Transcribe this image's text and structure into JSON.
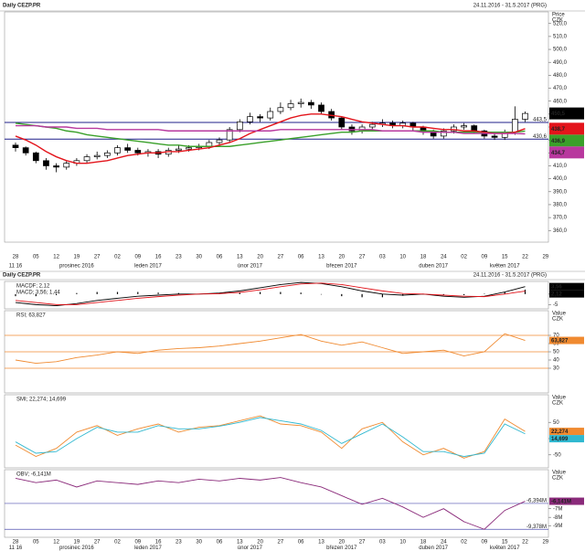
{
  "chart_data": [
    {
      "type": "candlestick",
      "title": "Daily CEZP.PR",
      "subtitle": "24.11.2016 - 31.5.2017 (PRG)",
      "ylabel": [
        "Price",
        "CZK"
      ],
      "categories": [
        "28",
        null,
        "05",
        null,
        "12",
        null,
        "19",
        null,
        "27",
        null,
        "02",
        null,
        "09",
        null,
        "16",
        null,
        "23",
        null,
        "30",
        null,
        "06",
        null,
        "13",
        null,
        "20",
        null,
        "27",
        null,
        "06",
        null,
        "13",
        null,
        "20",
        null,
        "27",
        null,
        "03",
        null,
        "10",
        null,
        "18",
        null,
        "24",
        null,
        "02",
        null,
        "09",
        null,
        "15",
        null,
        "22",
        null,
        "29"
      ],
      "categories2": [
        "11 16",
        null,
        null,
        null,
        null,
        null,
        "prosinec 2016",
        null,
        null,
        null,
        null,
        null,
        null,
        "leden 2017",
        null,
        null,
        null,
        null,
        null,
        null,
        null,
        null,
        null,
        "únor 2017",
        null,
        null,
        null,
        null,
        null,
        null,
        null,
        null,
        "březen 2017",
        null,
        null,
        null,
        null,
        null,
        null,
        null,
        null,
        "duben 2017",
        null,
        null,
        null,
        null,
        null,
        null,
        "květen 2017",
        null,
        null,
        null,
        null
      ],
      "open": [
        426,
        424,
        420,
        414,
        410,
        409,
        412,
        414,
        417,
        418,
        420,
        424,
        422,
        420,
        421,
        419,
        422,
        423,
        424,
        425,
        428,
        430,
        438,
        444,
        448,
        447,
        452,
        455,
        458,
        459,
        457,
        452,
        447,
        440,
        437,
        440,
        442,
        443,
        441,
        443,
        440,
        436,
        433,
        437,
        440,
        441,
        437,
        433,
        432,
        436,
        446,
        null,
        null
      ],
      "high": [
        428,
        425,
        421,
        416,
        412,
        414,
        416,
        419,
        421,
        422,
        426,
        427,
        424,
        423,
        423,
        424,
        426,
        426,
        427,
        430,
        432,
        440,
        446,
        451,
        450,
        455,
        459,
        461,
        462,
        461,
        459,
        454,
        448,
        442,
        442,
        444,
        446,
        445,
        445,
        444,
        441,
        438,
        439,
        442,
        443,
        442,
        438,
        435,
        438,
        456,
        452,
        null,
        null
      ],
      "low": [
        421,
        418,
        412,
        407,
        405,
        407,
        410,
        412,
        415,
        416,
        418,
        420,
        418,
        417,
        416,
        417,
        420,
        421,
        422,
        423,
        426,
        428,
        436,
        442,
        444,
        445,
        450,
        453,
        455,
        454,
        450,
        445,
        438,
        434,
        435,
        438,
        440,
        439,
        439,
        437,
        434,
        431,
        431,
        435,
        438,
        435,
        431,
        430,
        430,
        434,
        444,
        null,
        null
      ],
      "close": [
        424,
        420,
        414,
        410,
        409,
        412,
        414,
        417,
        418,
        420,
        424,
        422,
        420,
        421,
        419,
        422,
        423,
        424,
        425,
        428,
        430,
        438,
        444,
        448,
        447,
        452,
        455,
        458,
        459,
        457,
        452,
        447,
        440,
        437,
        440,
        442,
        443,
        441,
        443,
        440,
        436,
        433,
        437,
        440,
        441,
        437,
        433,
        432,
        436,
        446,
        450.5,
        null,
        null
      ],
      "last_label": "450,5",
      "up_color": "#ffffff",
      "down_color": "#000000",
      "last_color": "#000000",
      "series": [
        {
          "color": "#3aa02a",
          "values": [
            443,
            442,
            441,
            440,
            439,
            437,
            436,
            434,
            433,
            432,
            431,
            430,
            429,
            428,
            427,
            426,
            426,
            425,
            425,
            425,
            425,
            425,
            426,
            427,
            428,
            429,
            430,
            431,
            432,
            433,
            434,
            435,
            436,
            436,
            437,
            437,
            437,
            437,
            437,
            437,
            437,
            437,
            436,
            436,
            436,
            436,
            436,
            436,
            436,
            436,
            436.9,
            null,
            null
          ],
          "last_label": "436,9"
        },
        {
          "color": "#e3141b",
          "values": [
            433,
            430,
            426,
            421,
            417,
            414,
            412,
            412,
            413,
            414,
            416,
            418,
            419,
            420,
            420,
            421,
            421,
            422,
            423,
            424,
            426,
            428,
            431,
            435,
            438,
            441,
            444,
            447,
            449,
            450,
            450,
            449,
            448,
            446,
            444,
            443,
            442,
            441,
            441,
            440,
            440,
            439,
            438,
            438,
            437,
            437,
            436,
            435,
            435,
            436,
            438.7,
            null,
            null
          ],
          "last_label": "438,7"
        },
        {
          "color": "#b8389e",
          "values": [
            441,
            441,
            441,
            440,
            440,
            440,
            439,
            439,
            439,
            438,
            438,
            438,
            438,
            438,
            438,
            437,
            437,
            437,
            437,
            437,
            437,
            437,
            437,
            437,
            437,
            437,
            438,
            438,
            438,
            438,
            438,
            438,
            438,
            438,
            438,
            438,
            437,
            437,
            437,
            437,
            436,
            436,
            436,
            436,
            435,
            435,
            435,
            435,
            435,
            435,
            434.7,
            null,
            null
          ],
          "last_label": "434,7"
        }
      ],
      "ylim": [
        351,
        529
      ],
      "yticks": [
        {
          "value": 360,
          "label": "360,0"
        },
        {
          "value": 370,
          "label": "370,0"
        },
        {
          "value": 380,
          "label": "380,0"
        },
        {
          "value": 390,
          "label": "390,0"
        },
        {
          "value": 400,
          "label": "400,0"
        },
        {
          "value": 410,
          "label": "410,0"
        },
        {
          "value": 420,
          "label": "420,0"
        },
        {
          "value": 430,
          "label": "430,0"
        },
        {
          "value": 440,
          "label": "440,0"
        },
        {
          "value": 450,
          "label": "450,0"
        },
        {
          "value": 460,
          "label": "460,0"
        },
        {
          "value": 470,
          "label": "470,0"
        },
        {
          "value": 480,
          "label": "480,0"
        },
        {
          "value": 490,
          "label": "490,0"
        },
        {
          "value": 500,
          "label": "500,0"
        },
        {
          "value": 510,
          "label": "510,0"
        },
        {
          "value": 520,
          "label": "520,0"
        }
      ],
      "hlines": [
        {
          "value": 443.5,
          "label": "443,5",
          "color": "#1f1f8a"
        },
        {
          "value": 430.6,
          "label": "430,6",
          "color": "#1f1f8a"
        }
      ]
    },
    {
      "type": "bar",
      "title": "Daily CEZP.PR",
      "subtitle": "24.11.2016 - 31.5.2017 (PRG)",
      "ylim": [
        -7,
        6
      ],
      "yticks": [
        0,
        -5
      ],
      "series": [
        {
          "name": "MACDF; 2,12",
          "type": "bar",
          "color": "#000000",
          "values": [
            -1,
            -1,
            -0.5,
            0.5,
            1,
            1,
            1,
            0.7,
            0.5,
            0,
            0.3,
            0.7,
            1,
            1,
            0.7,
            -0.2,
            -1,
            -1.5,
            -1.5,
            -0.8,
            0,
            -0.5,
            -0.5,
            0.2,
            1,
            2.12
          ],
          "last_label": "2,12"
        },
        {
          "name": "MACD; 3,56; 1,44",
          "type": "line",
          "color": "#000000",
          "values": [
            -4,
            -5,
            -5.5,
            -4.5,
            -3,
            -2,
            -1,
            -0.5,
            0,
            0,
            0.5,
            1.5,
            3,
            4.5,
            5.5,
            5,
            3.5,
            1.5,
            0,
            -0.5,
            0,
            -1,
            -1.5,
            -1,
            1,
            3.56
          ],
          "last_label": "3,56"
        },
        {
          "type": "line",
          "color": "#e3141b",
          "values": [
            -3,
            -4,
            -5,
            -5,
            -4,
            -3,
            -2,
            -1.2,
            -0.5,
            0,
            0.2,
            0.8,
            2,
            3.5,
            4.8,
            5.2,
            4.5,
            3,
            1.5,
            0.3,
            0,
            -0.5,
            -1,
            -1.2,
            0,
            1.44
          ]
        }
      ]
    },
    {
      "type": "line",
      "ylabel": [
        "Value",
        "CZK"
      ],
      "ylim": [
        0,
        100
      ],
      "yticks": [
        30,
        40,
        50,
        60,
        70
      ],
      "hlines": [
        {
          "value": 70,
          "color": "#f08a30"
        },
        {
          "value": 50,
          "color": "#f08a30"
        },
        {
          "value": 30,
          "color": "#f08a30"
        }
      ],
      "series": [
        {
          "name": "RSI; 63,827",
          "color": "#f08a30",
          "values": [
            40,
            36,
            38,
            43,
            46,
            50,
            48,
            52,
            54,
            55,
            57,
            60,
            63,
            67,
            71,
            63,
            58,
            62,
            55,
            48,
            50,
            52,
            45,
            50,
            72,
            63.827
          ],
          "last_label": "63,827"
        }
      ]
    },
    {
      "type": "line",
      "ylabel": [
        "Value",
        "CZK"
      ],
      "ylim": [
        -90,
        135
      ],
      "yticks": [
        50,
        0,
        -50
      ],
      "series": [
        {
          "name": "SMI; 22,274; 14,699",
          "color": "#f08a30",
          "values": [
            -20,
            -55,
            -30,
            20,
            40,
            10,
            30,
            45,
            20,
            35,
            40,
            55,
            70,
            45,
            40,
            20,
            -30,
            30,
            50,
            -10,
            -50,
            -30,
            -60,
            -40,
            60,
            22.274
          ],
          "last_label": "22,274"
        },
        {
          "color": "#30b8d0",
          "values": [
            -10,
            -45,
            -40,
            0,
            35,
            20,
            20,
            40,
            30,
            30,
            38,
            50,
            65,
            55,
            45,
            25,
            -15,
            15,
            45,
            5,
            -40,
            -40,
            -55,
            -45,
            45,
            14.699
          ],
          "last_label": "14,699"
        }
      ]
    },
    {
      "type": "line",
      "ylabel": [
        "Value",
        "CZK"
      ],
      "ylim": [
        -10.3,
        -2.5
      ],
      "yticks": [
        {
          "value": -7,
          "label": "-7M"
        },
        {
          "value": -8,
          "label": "-8M"
        },
        {
          "value": -9,
          "label": "-9M"
        }
      ],
      "hlines": [
        {
          "value": -6.394,
          "label": "-6,394M",
          "color": "#5050b0"
        },
        {
          "value": -9.378,
          "label": "-9,378M",
          "color": "#5050b0"
        }
      ],
      "series": [
        {
          "name": "OBV; -6,141M",
          "color": "#8a2a7a",
          "values": [
            -3.5,
            -4,
            -3.7,
            -4.5,
            -3.8,
            -4,
            -4.2,
            -3.8,
            -4,
            -3.6,
            -3.8,
            -3.5,
            -3.7,
            -3.4,
            -4,
            -4.5,
            -5.5,
            -6.5,
            -5.8,
            -6.8,
            -8,
            -7,
            -8.5,
            -9.378,
            -7.2,
            -6.141
          ],
          "last_label": "-6,141M"
        }
      ]
    }
  ]
}
